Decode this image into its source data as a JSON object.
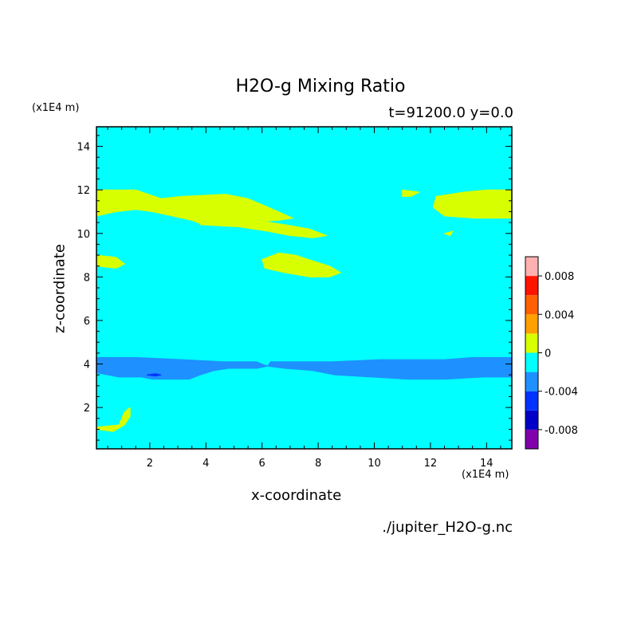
{
  "chart_data": {
    "type": "heatmap",
    "title": "H2O-g Mixing Ratio",
    "subtitle": "t=91200.0 y=0.0",
    "xlabel": "x-coordinate",
    "ylabel": "z-coordinate",
    "x_unit": "(x1E4 m)",
    "z_unit": "(x1E4 m)",
    "source": "./jupiter_H2O-g.nc",
    "xlim": [
      0.1,
      14.9
    ],
    "ylim": [
      0.1,
      14.9
    ],
    "x_ticks": [
      2,
      4,
      6,
      8,
      10,
      12,
      14
    ],
    "y_ticks": [
      2,
      4,
      6,
      8,
      10,
      12,
      14
    ],
    "background_level_color": "#00ffff",
    "colorbar": {
      "levels": [
        -0.01,
        -0.008,
        -0.006,
        -0.004,
        -0.002,
        0,
        0.002,
        0.004,
        0.006,
        0.008,
        0.01
      ],
      "colors": [
        "#8000ac",
        "#0000c8",
        "#0032ff",
        "#1e90ff",
        "#00ffff",
        "#d8ff00",
        "#ffa000",
        "#ff6000",
        "#ff1400",
        "#ffb0b0"
      ],
      "tick_values": [
        -0.008,
        -0.004,
        0,
        0.004,
        0.008
      ],
      "tick_labels": [
        "-0.008",
        "-0.004",
        "0",
        "0.004",
        "0.008"
      ]
    },
    "regions": [
      {
        "level": "0 to 0.002",
        "color": "#d8ff00",
        "points": [
          [
            0.1,
            12
          ],
          [
            1.5,
            12
          ],
          [
            2.4,
            11.6
          ],
          [
            3.1,
            11.7
          ],
          [
            4.7,
            11.8
          ],
          [
            5.5,
            11.6
          ],
          [
            6.4,
            11.1
          ],
          [
            7.1,
            10.7
          ],
          [
            6.6,
            10.6
          ],
          [
            5.3,
            10.5
          ],
          [
            3.9,
            10.4
          ],
          [
            3.5,
            10.6
          ],
          [
            2.8,
            10.8
          ],
          [
            2.1,
            11
          ],
          [
            1.5,
            11.1
          ],
          [
            0.8,
            11
          ],
          [
            0.1,
            10.8
          ]
        ]
      },
      {
        "level": "0 to 0.002",
        "color": "#d8ff00",
        "points": [
          [
            3.8,
            10.4
          ],
          [
            5.2,
            10.3
          ],
          [
            6.2,
            10.1
          ],
          [
            7,
            9.9
          ],
          [
            7.8,
            9.8
          ],
          [
            8.3,
            9.9
          ],
          [
            7.7,
            10.2
          ],
          [
            6.8,
            10.4
          ],
          [
            5.8,
            10.6
          ],
          [
            4.6,
            10.7
          ],
          [
            3.8,
            10.6
          ]
        ]
      },
      {
        "level": "0 to 0.002",
        "color": "#d8ff00",
        "points": [
          [
            6,
            8.8
          ],
          [
            6.6,
            9.1
          ],
          [
            7.2,
            9
          ],
          [
            7.9,
            8.7
          ],
          [
            8.4,
            8.5
          ],
          [
            8.8,
            8.2
          ],
          [
            8.4,
            8
          ],
          [
            7.7,
            8
          ],
          [
            6.8,
            8.2
          ],
          [
            6.1,
            8.4
          ]
        ]
      },
      {
        "level": "0 to 0.002",
        "color": "#d8ff00",
        "points": [
          [
            0.1,
            9
          ],
          [
            0.8,
            8.9
          ],
          [
            1.1,
            8.6
          ],
          [
            0.8,
            8.4
          ],
          [
            0.1,
            8.5
          ]
        ]
      },
      {
        "level": "0 to 0.002",
        "color": "#d8ff00",
        "points": [
          [
            11,
            12
          ],
          [
            11.6,
            11.9
          ],
          [
            11.3,
            11.7
          ],
          [
            11,
            11.7
          ]
        ]
      },
      {
        "level": "0 to 0.002",
        "color": "#d8ff00",
        "points": [
          [
            12.2,
            11.7
          ],
          [
            13.2,
            11.9
          ],
          [
            14,
            12
          ],
          [
            14.9,
            12
          ],
          [
            14.9,
            10.7
          ],
          [
            13.6,
            10.7
          ],
          [
            12.5,
            10.8
          ],
          [
            12.1,
            11.2
          ]
        ]
      },
      {
        "level": "0 to 0.002",
        "color": "#d8ff00",
        "points": [
          [
            12.5,
            10
          ],
          [
            12.8,
            10.1
          ],
          [
            12.7,
            9.9
          ]
        ]
      },
      {
        "level": "0 to 0.002",
        "color": "#d8ff00",
        "points": [
          [
            0.1,
            1.0
          ],
          [
            0.7,
            0.9
          ],
          [
            1.1,
            1.2
          ],
          [
            1.3,
            1.6
          ],
          [
            1.3,
            2.0
          ],
          [
            1.1,
            1.8
          ],
          [
            0.9,
            1.2
          ],
          [
            0.1,
            1.1
          ]
        ]
      },
      {
        "level": "-0.004 to -0.002",
        "color": "#1e90ff",
        "points": [
          [
            0.1,
            4.3
          ],
          [
            1.5,
            4.3
          ],
          [
            3.2,
            4.2
          ],
          [
            4.6,
            4.1
          ],
          [
            5.8,
            4.1
          ],
          [
            6.2,
            3.9
          ],
          [
            5.8,
            3.8
          ],
          [
            4.8,
            3.8
          ],
          [
            4.3,
            3.7
          ],
          [
            3.8,
            3.5
          ],
          [
            3.4,
            3.3
          ],
          [
            2.6,
            3.3
          ],
          [
            2.1,
            3.3
          ],
          [
            1.7,
            3.4
          ],
          [
            0.9,
            3.4
          ],
          [
            0.1,
            3.6
          ]
        ]
      },
      {
        "level": "-0.004 to -0.002",
        "color": "#1e90ff",
        "points": [
          [
            6.3,
            4.1
          ],
          [
            7.3,
            4.1
          ],
          [
            8.5,
            4.1
          ],
          [
            10.2,
            4.2
          ],
          [
            11.5,
            4.2
          ],
          [
            12.5,
            4.2
          ],
          [
            13.5,
            4.3
          ],
          [
            14.9,
            4.3
          ],
          [
            14.9,
            3.4
          ],
          [
            13.9,
            3.4
          ],
          [
            12.5,
            3.3
          ],
          [
            11.2,
            3.3
          ],
          [
            9.9,
            3.4
          ],
          [
            8.6,
            3.5
          ],
          [
            7.8,
            3.7
          ],
          [
            6.8,
            3.8
          ],
          [
            6.2,
            3.9
          ]
        ]
      },
      {
        "level": "-0.006 to -0.004",
        "color": "#0032ff",
        "points": [
          [
            1.9,
            3.5
          ],
          [
            2.2,
            3.55
          ],
          [
            2.4,
            3.5
          ],
          [
            2.2,
            3.45
          ]
        ]
      }
    ]
  }
}
